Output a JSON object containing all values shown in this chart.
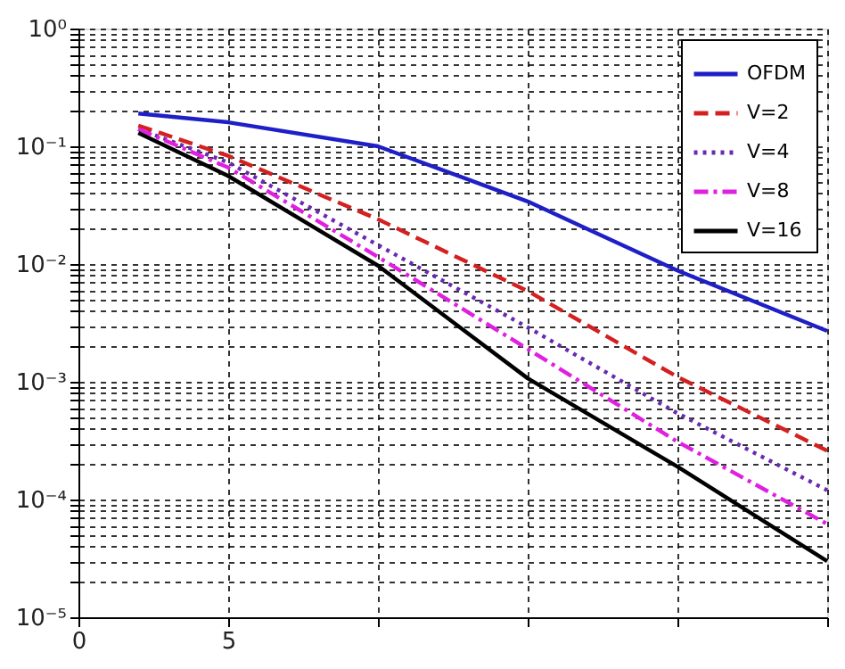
{
  "chart_data": {
    "type": "line",
    "x": [
      2,
      5,
      10,
      15,
      20,
      25
    ],
    "series": [
      {
        "name": "OFDM",
        "color": "#1f1fc8",
        "line_style": "solid",
        "values": [
          0.19,
          0.16,
          0.1,
          0.034,
          0.0088,
          0.0027
        ]
      },
      {
        "name": "V=2",
        "color": "#d42020",
        "line_style": "dashed",
        "values": [
          0.15,
          0.083,
          0.024,
          0.0059,
          0.0011,
          0.00026
        ]
      },
      {
        "name": "V=4",
        "color": "#6a2ab0",
        "line_style": "dotted",
        "values": [
          0.14,
          0.073,
          0.0145,
          0.0029,
          0.00054,
          0.00012
        ]
      },
      {
        "name": "V=8",
        "color": "#e020e0",
        "line_style": "dashdot",
        "values": [
          0.14,
          0.066,
          0.0115,
          0.0019,
          0.00031,
          6.2e-05
        ]
      },
      {
        "name": "V=16",
        "color": "#000000",
        "line_style": "solid",
        "values": [
          0.13,
          0.056,
          0.0097,
          0.00107,
          0.00019,
          3e-05
        ]
      }
    ],
    "xlim": [
      0,
      25
    ],
    "xticks": [
      0,
      5,
      {
        "value": 10,
        "label": null
      },
      {
        "value": 15,
        "label": null
      },
      {
        "value": 20,
        "label": null
      },
      {
        "value": 25,
        "label": null
      }
    ],
    "ylim": [
      1e-05,
      1
    ],
    "log": "y",
    "yticks": [
      {
        "value": 1e-05,
        "label": "10⁻⁵"
      },
      {
        "value": 2e-05,
        "label": null
      },
      {
        "value": 3e-05,
        "label": null
      },
      {
        "value": 4e-05,
        "label": null
      },
      {
        "value": 5e-05,
        "label": null
      },
      {
        "value": 6e-05,
        "label": null
      },
      {
        "value": 7e-05,
        "label": null
      },
      {
        "value": 8e-05,
        "label": null
      },
      {
        "value": 9e-05,
        "label": null
      },
      {
        "value": 0.0001,
        "label": "10⁻⁴"
      },
      {
        "value": 0.0002,
        "label": null
      },
      {
        "value": 0.0003,
        "label": null
      },
      {
        "value": 0.0004,
        "label": null
      },
      {
        "value": 0.0005,
        "label": null
      },
      {
        "value": 0.0006,
        "label": null
      },
      {
        "value": 0.0007,
        "label": null
      },
      {
        "value": 0.0008,
        "label": null
      },
      {
        "value": 0.0009,
        "label": null
      },
      {
        "value": 0.001,
        "label": "10⁻³"
      },
      {
        "value": 0.002,
        "label": null
      },
      {
        "value": 0.003,
        "label": null
      },
      {
        "value": 0.004,
        "label": null
      },
      {
        "value": 0.005,
        "label": null
      },
      {
        "value": 0.006,
        "label": null
      },
      {
        "value": 0.007,
        "label": null
      },
      {
        "value": 0.008,
        "label": null
      },
      {
        "value": 0.009,
        "label": null
      },
      {
        "value": 0.01,
        "label": "10⁻²"
      },
      {
        "value": 0.02,
        "label": null
      },
      {
        "value": 0.03,
        "label": null
      },
      {
        "value": 0.04,
        "label": null
      },
      {
        "value": 0.05,
        "label": null
      },
      {
        "value": 0.06,
        "label": null
      },
      {
        "value": 0.07,
        "label": null
      },
      {
        "value": 0.08,
        "label": null
      },
      {
        "value": 0.09,
        "label": null
      },
      {
        "value": 0.1,
        "label": "10⁻¹"
      },
      {
        "value": 0.2,
        "label": null
      },
      {
        "value": 0.3,
        "label": null
      },
      {
        "value": 0.4,
        "label": null
      },
      {
        "value": 0.5,
        "label": null
      },
      {
        "value": 0.6,
        "label": null
      },
      {
        "value": 0.7,
        "label": null
      },
      {
        "value": 0.8,
        "label": null
      },
      {
        "value": 0.9,
        "label": null
      },
      {
        "value": 1,
        "label": "10⁰"
      }
    ],
    "grid": true,
    "legend": "top right",
    "marker": "none"
  }
}
